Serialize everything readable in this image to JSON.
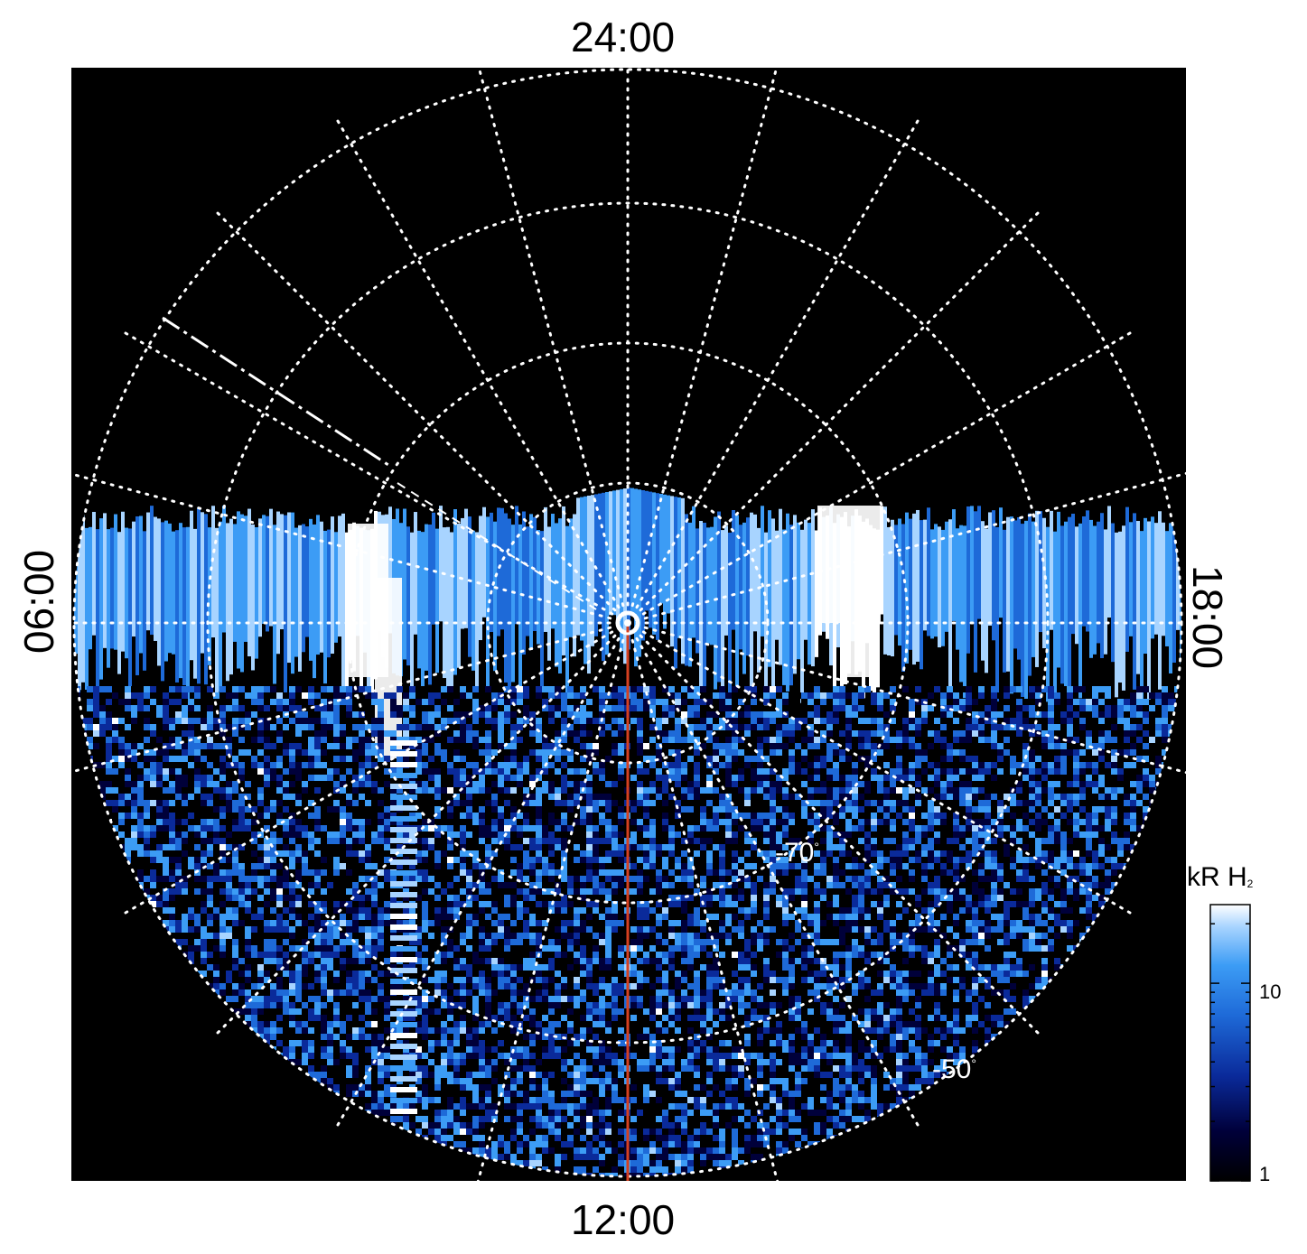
{
  "figure": {
    "local_time_labels": {
      "top": "24:00",
      "bottom": "12:00",
      "left": "06:00",
      "right": "18:00"
    },
    "latitude_labels": [
      {
        "text": "-70",
        "unit": "°"
      },
      {
        "text": "-50",
        "unit": "°"
      }
    ],
    "colorbar": {
      "title_main": "kR H",
      "title_sub": "2",
      "ticks": [
        "10",
        "1"
      ],
      "scale": "log",
      "range": [
        1,
        25
      ],
      "colors": [
        "#000000",
        "#00003a",
        "#0a2a9a",
        "#1e6ad8",
        "#3c9cf5",
        "#a8d4ff",
        "#ffffff"
      ]
    },
    "colors": {
      "background": "#000000",
      "grid": "#ffffff",
      "meridian_line": "#d64020"
    }
  }
}
